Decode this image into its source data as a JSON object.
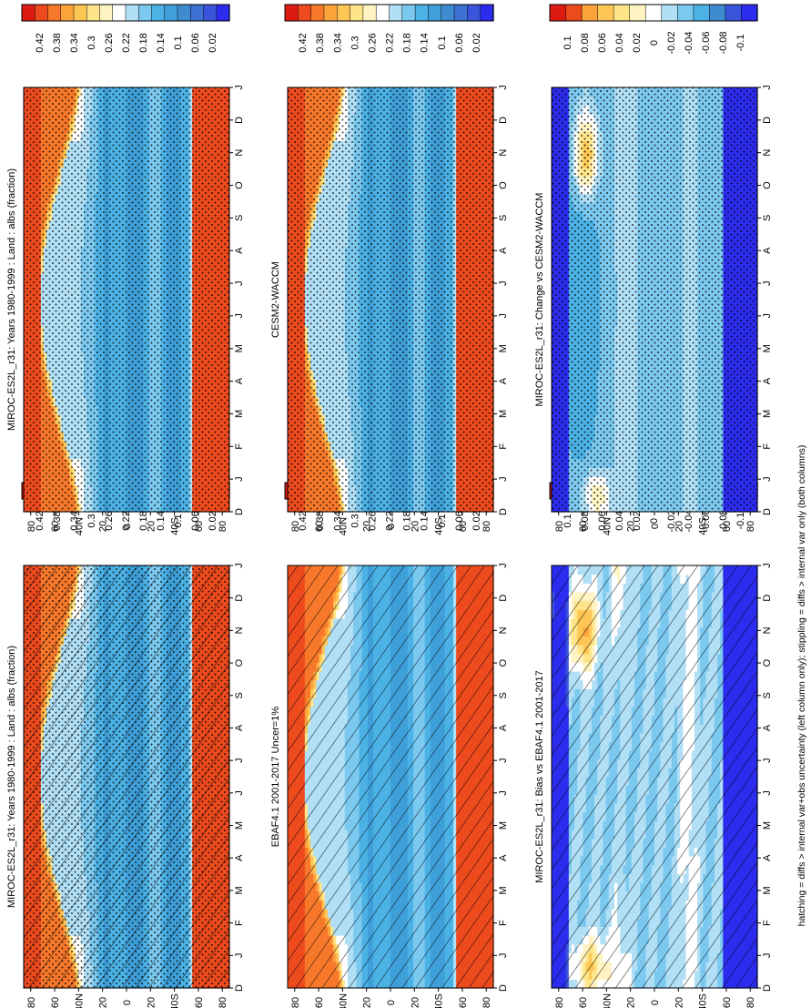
{
  "figure": {
    "footnote": "hatching = diffs > internal var+obs uncertainty (left column only); stippling = diffs > internal var only (both columns)"
  },
  "colors": {
    "abs_scale": [
      "#2c2cee",
      "#3a55dc",
      "#3d72d4",
      "#3f8bd0",
      "#3f9fd8",
      "#4cb2e6",
      "#7cc9f0",
      "#b0dff6",
      "#ffffff",
      "#fff3c2",
      "#ffe58a",
      "#fec655",
      "#fda33c",
      "#f7782a",
      "#ed4a1e",
      "#de1b12"
    ],
    "diff_scale": [
      "#2c2cee",
      "#3a55dc",
      "#3f8bd0",
      "#4cb2e6",
      "#7cc9f0",
      "#b0dff6",
      "#ffffff",
      "#fff3c2",
      "#ffe58a",
      "#fec655",
      "#fda33c",
      "#ed4a1e",
      "#de1b12"
    ]
  },
  "chart_data": [
    {
      "id": "p1",
      "type": "heatmap",
      "title": "MIROC-ES2L_r31: Years 1980-1999 : Land : albs (fraction)",
      "time_ticks": [
        "D",
        "J",
        "F",
        "M",
        "A",
        "M",
        "J",
        "J",
        "A",
        "S",
        "O",
        "N",
        "D",
        "J"
      ],
      "lat_ticks": [
        "80",
        "60",
        "40N",
        "20",
        "0",
        "20",
        "40S",
        "60",
        "80"
      ],
      "lat_range": [
        90,
        -90
      ],
      "colorbar_labels": [
        "0.42",
        "0.38",
        "0.34",
        "0.3",
        "0.26",
        "0.22",
        "0.18",
        "0.14",
        "0.1",
        "0.06",
        "0.02"
      ],
      "field": "albedo",
      "overlay": "hatching+stippling"
    },
    {
      "id": "p2",
      "type": "heatmap",
      "title": "MIROC-ES2L_r31: Years 1980-1999 : Land : albs (fraction)",
      "time_ticks": [
        "D",
        "J",
        "F",
        "M",
        "A",
        "M",
        "J",
        "J",
        "A",
        "S",
        "O",
        "N",
        "D",
        "J"
      ],
      "lat_ticks": [
        "80",
        "60",
        "40N",
        "20",
        "0",
        "20",
        "40S",
        "60",
        "80"
      ],
      "lat_range": [
        90,
        -90
      ],
      "colorbar_labels": [
        "0.42",
        "0.38",
        "0.34",
        "0.3",
        "0.26",
        "0.22",
        "0.18",
        "0.14",
        "0.1",
        "0.06",
        "0.02"
      ],
      "field": "albedo",
      "overlay": "stippling"
    },
    {
      "id": "p3",
      "type": "heatmap",
      "title": "EBAF4.1 2001-2017 Uncer=1%",
      "time_ticks": [
        "D",
        "J",
        "F",
        "M",
        "A",
        "M",
        "J",
        "J",
        "A",
        "S",
        "O",
        "N",
        "D",
        "J"
      ],
      "lat_ticks": [
        "80",
        "60",
        "40N",
        "20",
        "0",
        "20",
        "40S",
        "60",
        "80"
      ],
      "lat_range": [
        90,
        -90
      ],
      "colorbar_labels": [
        "0.42",
        "0.38",
        "0.34",
        "0.3",
        "0.26",
        "0.22",
        "0.18",
        "0.14",
        "0.1",
        "0.06",
        "0.02"
      ],
      "field": "albedo",
      "overlay": "hatching"
    },
    {
      "id": "p4",
      "type": "heatmap",
      "title": "CESM2-WACCM",
      "time_ticks": [
        "D",
        "J",
        "F",
        "M",
        "A",
        "M",
        "J",
        "J",
        "A",
        "S",
        "O",
        "N",
        "D",
        "J"
      ],
      "lat_ticks": [
        "80",
        "60",
        "40N",
        "20",
        "0",
        "20",
        "40S",
        "60",
        "80"
      ],
      "lat_range": [
        90,
        -90
      ],
      "colorbar_labels": [
        "0.42",
        "0.38",
        "0.34",
        "0.3",
        "0.26",
        "0.22",
        "0.18",
        "0.14",
        "0.1",
        "0.06",
        "0.02"
      ],
      "field": "albedo",
      "overlay": "stippling"
    },
    {
      "id": "p5",
      "type": "heatmap",
      "title": "MIROC-ES2L_r31: Bias vs EBAF4.1 2001-2017",
      "time_ticks": [
        "D",
        "J",
        "F",
        "M",
        "A",
        "M",
        "J",
        "J",
        "A",
        "S",
        "O",
        "N",
        "D",
        "J"
      ],
      "lat_ticks": [
        "80",
        "60",
        "40N",
        "20",
        "0",
        "20",
        "40S",
        "60",
        "80"
      ],
      "lat_range": [
        90,
        -90
      ],
      "colorbar_labels": [
        "0.1",
        "0.08",
        "0.06",
        "0.04",
        "0.02",
        "0",
        "-0.02",
        "-0.04",
        "-0.06",
        "-0.08",
        "-0.1"
      ],
      "field": "diff_bias",
      "overlay": "hatching"
    },
    {
      "id": "p6",
      "type": "heatmap",
      "title": "MIROC-ES2L_r31: Change vs CESM2-WACCM",
      "time_ticks": [
        "D",
        "J",
        "F",
        "M",
        "A",
        "M",
        "J",
        "J",
        "A",
        "S",
        "O",
        "N",
        "D",
        "J"
      ],
      "lat_ticks": [
        "80",
        "60",
        "40N",
        "20",
        "0",
        "20",
        "40S",
        "60",
        "80"
      ],
      "lat_range": [
        90,
        -90
      ],
      "colorbar_labels": [
        "0.1",
        "0.08",
        "0.06",
        "0.04",
        "0.02",
        "0",
        "-0.02",
        "-0.04",
        "-0.06",
        "-0.08",
        "-0.1"
      ],
      "field": "diff_change",
      "overlay": "stippling"
    }
  ]
}
